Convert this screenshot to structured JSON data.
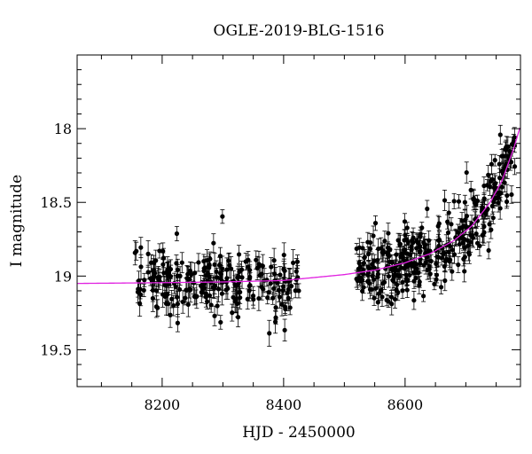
{
  "chart_data": {
    "type": "scatter",
    "title": "OGLE-2019-BLG-1516",
    "xlabel": "HJD - 2450000",
    "ylabel": "I magnitude",
    "xlim": [
      8060,
      8790
    ],
    "ylim": [
      19.75,
      17.5
    ],
    "y_inverted": true,
    "x_ticks": [
      8200,
      8400,
      8600
    ],
    "y_ticks": [
      18,
      18.5,
      19,
      19.5
    ],
    "x_tick_labels": [
      "8200",
      "8400",
      "8600"
    ],
    "y_tick_labels": [
      "18",
      "18.5",
      "19",
      "19.5"
    ],
    "grid": false,
    "colors": {
      "points": "#000000",
      "model": "#e020e0"
    },
    "observations": {
      "season_1": {
        "x_range": [
          8155,
          8425
        ],
        "mean_mag": 19.05,
        "scatter": 0.13,
        "errorbar": 0.06
      },
      "season_2": {
        "x_range": [
          8520,
          8782
        ],
        "mean_mag_start": 18.95,
        "mean_mag_end": 18.1,
        "scatter": 0.12,
        "errorbar": 0.05
      }
    },
    "model_curve": {
      "name": "microlensing model",
      "x": [
        8060,
        8200,
        8300,
        8400,
        8450,
        8500,
        8550,
        8600,
        8640,
        8680,
        8710,
        8740,
        8760,
        8780,
        8790
      ],
      "y": [
        19.05,
        19.045,
        19.04,
        19.03,
        19.01,
        18.99,
        18.96,
        18.91,
        18.85,
        18.76,
        18.66,
        18.5,
        18.35,
        18.12,
        17.98
      ]
    }
  }
}
